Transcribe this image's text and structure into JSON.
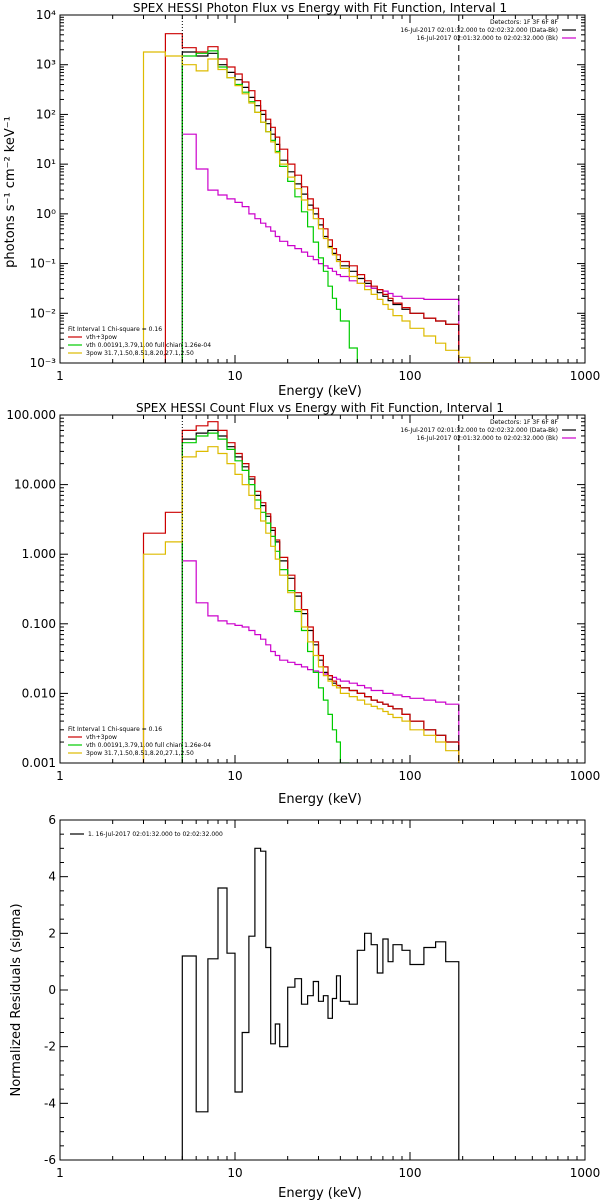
{
  "chart_data": [
    {
      "type": "line",
      "title": "SPEX HESSI Photon Flux vs Energy with Fit Function, Interval 1",
      "xlabel": "Energy (keV)",
      "ylabel": "photons s⁻¹ cm⁻² keV⁻¹",
      "xscale": "log",
      "yscale": "log",
      "xlim": [
        1,
        1000
      ],
      "ylim": [
        0.001,
        10000
      ],
      "xticks": [
        1,
        10,
        100,
        1000
      ],
      "xtick_labels": [
        "1",
        "10",
        "100",
        "1000"
      ],
      "yticks": [
        0.001,
        0.01,
        0.1,
        1,
        10,
        100,
        1000,
        10000
      ],
      "ytick_labels": [
        "10⁻³",
        "10⁻²",
        "10⁻¹",
        "10⁰",
        "10¹",
        "10²",
        "10³",
        "10⁴"
      ],
      "vlines": [
        {
          "x": 5,
          "style": "dotted"
        },
        {
          "x": 190,
          "style": "dashed"
        }
      ],
      "legend_right": {
        "header": "Detectors: 1F 3F 6F 8F",
        "entries": [
          {
            "label": "16-Jul-2017 02:01:32.000 to 02:02:32.000 (Data-Bk)",
            "color": "#000000"
          },
          {
            "label": "16-Jul-2017 02:01:32.000 to 02:02:32.000 (Bk)",
            "color": "#cc00cc"
          }
        ]
      },
      "legend_left": {
        "header": "Fit Interval 1   Chi-square = 0.16",
        "entries": [
          {
            "label": "vth+3pow",
            "color": "#cc0000"
          },
          {
            "label": "vth 0.00191,3.79,1.00  full chian 1.26e-04",
            "color": "#00cc00"
          },
          {
            "label": "3pow 31.7,1.50,8.51,8.20,27.1,2.50",
            "color": "#ddbb00"
          }
        ]
      },
      "series": [
        {
          "color": "#000000",
          "edges": [
            5,
            6,
            7,
            8,
            9,
            10,
            11,
            12,
            13,
            14,
            15,
            16,
            17,
            18,
            20,
            22,
            24,
            26,
            28,
            30,
            32,
            34,
            36,
            38,
            40,
            45,
            50,
            55,
            60,
            65,
            70,
            75,
            80,
            90,
            100,
            120,
            140,
            160,
            190
          ],
          "values": [
            1800,
            1500,
            1700,
            1000,
            700,
            500,
            350,
            220,
            150,
            100,
            65,
            40,
            25,
            12,
            7,
            4,
            2.5,
            1.5,
            1,
            0.6,
            0.35,
            0.22,
            0.16,
            0.12,
            0.09,
            0.07,
            0.05,
            0.04,
            0.032,
            0.026,
            0.022,
            0.018,
            0.015,
            0.012,
            0.01,
            0.008,
            0.007,
            0.006
          ]
        },
        {
          "color": "#cc00cc",
          "edges": [
            5,
            6,
            7,
            8,
            9,
            10,
            11,
            12,
            13,
            14,
            15,
            16,
            17,
            18,
            20,
            22,
            24,
            26,
            28,
            30,
            32,
            34,
            36,
            38,
            40,
            45,
            50,
            55,
            60,
            65,
            70,
            75,
            80,
            90,
            100,
            120,
            140,
            160,
            190
          ],
          "values": [
            40,
            8,
            3,
            2.4,
            2,
            1.7,
            1.4,
            1,
            0.8,
            0.65,
            0.55,
            0.45,
            0.35,
            0.28,
            0.23,
            0.2,
            0.17,
            0.14,
            0.12,
            0.1,
            0.09,
            0.08,
            0.07,
            0.06,
            0.055,
            0.045,
            0.04,
            0.035,
            0.032,
            0.03,
            0.028,
            0.025,
            0.022,
            0.02,
            0.02,
            0.019,
            0.019,
            0.019
          ]
        },
        {
          "color": "#cc0000",
          "edges": [
            4,
            5,
            6,
            7,
            8,
            9,
            10,
            11,
            12,
            13,
            14,
            15,
            16,
            17,
            18,
            20,
            22,
            24,
            26,
            28,
            30,
            32,
            34,
            36,
            38,
            40,
            45,
            50,
            55,
            60,
            65,
            70,
            75,
            80,
            90,
            100,
            120,
            140,
            160,
            190
          ],
          "values": [
            4200,
            2200,
            1800,
            2300,
            1300,
            900,
            650,
            450,
            300,
            190,
            120,
            80,
            55,
            35,
            20,
            10,
            6,
            3.5,
            2,
            1.3,
            0.8,
            0.5,
            0.3,
            0.2,
            0.15,
            0.11,
            0.09,
            0.06,
            0.045,
            0.035,
            0.03,
            0.024,
            0.02,
            0.016,
            0.013,
            0.01,
            0.008,
            0.007,
            0.006
          ]
        },
        {
          "color": "#00cc00",
          "edges": [
            5,
            6,
            7,
            8,
            9,
            10,
            11,
            12,
            13,
            14,
            15,
            16,
            17,
            18,
            20,
            22,
            24,
            26,
            28,
            30,
            32,
            34,
            36,
            38,
            40,
            45,
            50
          ],
          "values": [
            1500,
            1700,
            1900,
            900,
            550,
            400,
            280,
            180,
            110,
            70,
            45,
            30,
            18,
            9,
            4.5,
            2.2,
            1.1,
            0.55,
            0.27,
            0.13,
            0.07,
            0.035,
            0.02,
            0.012,
            0.007,
            0.002
          ]
        },
        {
          "color": "#ddbb00",
          "edges": [
            3,
            4,
            5,
            6,
            7,
            8,
            9,
            10,
            11,
            12,
            13,
            14,
            15,
            16,
            17,
            18,
            20,
            22,
            24,
            26,
            28,
            30,
            32,
            34,
            36,
            38,
            40,
            45,
            50,
            55,
            60,
            65,
            70,
            75,
            80,
            90,
            100,
            120,
            140,
            160,
            190,
            220,
            260,
            300
          ],
          "values": [
            1800,
            1500,
            1000,
            750,
            1300,
            800,
            550,
            380,
            260,
            170,
            110,
            70,
            45,
            28,
            17,
            10,
            5.5,
            3.2,
            1.9,
            1.2,
            0.8,
            0.5,
            0.32,
            0.21,
            0.15,
            0.11,
            0.08,
            0.055,
            0.04,
            0.03,
            0.024,
            0.019,
            0.015,
            0.012,
            0.009,
            0.007,
            0.005,
            0.0035,
            0.0025,
            0.0018,
            0.0013,
            0.001,
            0.0009
          ]
        }
      ]
    },
    {
      "type": "line",
      "title": "SPEX HESSI Count Flux vs Energy with Fit Function, Interval 1",
      "xlabel": "Energy (keV)",
      "ylabel": "",
      "xscale": "log",
      "yscale": "log",
      "xlim": [
        1,
        1000
      ],
      "ylim": [
        0.001,
        100
      ],
      "xticks": [
        1,
        10,
        100,
        1000
      ],
      "xtick_labels": [
        "1",
        "10",
        "100",
        "1000"
      ],
      "yticks": [
        0.001,
        0.01,
        0.1,
        1,
        10,
        100
      ],
      "ytick_labels": [
        "0.001",
        "0.010",
        "0.100",
        "1.000",
        "10.000",
        "100.000"
      ],
      "vlines": [
        {
          "x": 5,
          "style": "dotted"
        },
        {
          "x": 190,
          "style": "dashed"
        }
      ],
      "legend_right": {
        "header": "Detectors: 1F 3F 6F 8F",
        "entries": [
          {
            "label": "16-Jul-2017 02:01:32.000 to 02:02:32.000 (Data-Bk)",
            "color": "#000000"
          },
          {
            "label": "16-Jul-2017 02:01:32.000 to 02:02:32.000 (Bk)",
            "color": "#cc00cc"
          }
        ]
      },
      "legend_left": {
        "header": "Fit Interval 1   Chi-square = 0.16",
        "entries": [
          {
            "label": "vth+3pow",
            "color": "#cc0000"
          },
          {
            "label": "vth 0.00191,3.79,1.00  full chian 1.26e-04",
            "color": "#00cc00"
          },
          {
            "label": "3pow 31.7,1.50,8.51,8.20,27.1,2.50",
            "color": "#ddbb00"
          }
        ]
      },
      "series": [
        {
          "color": "#000000",
          "edges": [
            5,
            6,
            7,
            8,
            9,
            10,
            11,
            12,
            13,
            14,
            15,
            16,
            17,
            18,
            20,
            22,
            24,
            26,
            28,
            30,
            32,
            34,
            36,
            38,
            40,
            45,
            50,
            55,
            60,
            65,
            70,
            75,
            80,
            90,
            100,
            120,
            140,
            160,
            190
          ],
          "values": [
            45,
            55,
            60,
            50,
            35,
            25,
            18,
            12,
            7,
            5,
            3.5,
            2.2,
            1.5,
            0.8,
            0.45,
            0.25,
            0.14,
            0.08,
            0.05,
            0.03,
            0.02,
            0.016,
            0.014,
            0.013,
            0.012,
            0.011,
            0.01,
            0.009,
            0.008,
            0.0075,
            0.007,
            0.0065,
            0.006,
            0.005,
            0.004,
            0.003,
            0.0025,
            0.002
          ]
        },
        {
          "color": "#cc00cc",
          "edges": [
            5,
            6,
            7,
            8,
            9,
            10,
            11,
            12,
            13,
            14,
            15,
            16,
            17,
            18,
            20,
            22,
            24,
            26,
            28,
            30,
            32,
            34,
            36,
            38,
            40,
            45,
            50,
            55,
            60,
            65,
            70,
            75,
            80,
            90,
            100,
            120,
            140,
            160,
            190
          ],
          "values": [
            0.8,
            0.2,
            0.13,
            0.11,
            0.1,
            0.095,
            0.09,
            0.08,
            0.07,
            0.06,
            0.05,
            0.04,
            0.035,
            0.03,
            0.028,
            0.026,
            0.024,
            0.022,
            0.021,
            0.02,
            0.019,
            0.018,
            0.017,
            0.016,
            0.015,
            0.014,
            0.013,
            0.012,
            0.011,
            0.011,
            0.01,
            0.01,
            0.0095,
            0.009,
            0.0085,
            0.008,
            0.0075,
            0.007
          ]
        },
        {
          "color": "#cc0000",
          "edges": [
            3,
            4,
            5,
            6,
            7,
            8,
            9,
            10,
            11,
            12,
            13,
            14,
            15,
            16,
            17,
            18,
            20,
            22,
            24,
            26,
            28,
            30,
            32,
            34,
            36,
            38,
            40,
            45,
            50,
            55,
            60,
            65,
            70,
            75,
            80,
            90,
            100,
            120,
            140,
            160,
            190
          ],
          "values": [
            2,
            4,
            60,
            70,
            80,
            60,
            40,
            28,
            20,
            13,
            8,
            5.5,
            3.8,
            2.4,
            1.6,
            0.9,
            0.5,
            0.28,
            0.16,
            0.09,
            0.055,
            0.035,
            0.024,
            0.018,
            0.015,
            0.013,
            0.012,
            0.011,
            0.01,
            0.009,
            0.008,
            0.0075,
            0.007,
            0.0065,
            0.006,
            0.005,
            0.004,
            0.003,
            0.0025,
            0.002
          ]
        },
        {
          "color": "#00cc00",
          "edges": [
            5,
            6,
            7,
            8,
            9,
            10,
            11,
            12,
            13,
            14,
            15,
            16,
            17,
            18,
            20,
            22,
            24,
            26,
            28,
            30,
            32,
            34,
            36,
            38,
            40,
            45
          ],
          "values": [
            40,
            50,
            55,
            45,
            32,
            22,
            16,
            10,
            6,
            4,
            2.8,
            1.8,
            1.1,
            0.6,
            0.3,
            0.15,
            0.08,
            0.04,
            0.02,
            0.012,
            0.008,
            0.005,
            0.003,
            0.002,
            0.001
          ]
        },
        {
          "color": "#ddbb00",
          "edges": [
            3,
            4,
            5,
            6,
            7,
            8,
            9,
            10,
            11,
            12,
            13,
            14,
            15,
            16,
            17,
            18,
            20,
            22,
            24,
            26,
            28,
            30,
            32,
            34,
            36,
            38,
            40,
            45,
            50,
            55,
            60,
            65,
            70,
            75,
            80,
            90,
            100,
            120,
            140,
            160,
            190
          ],
          "values": [
            1,
            1.5,
            25,
            30,
            35,
            28,
            20,
            14,
            10,
            7,
            4.5,
            3,
            2,
            1.3,
            0.85,
            0.5,
            0.28,
            0.16,
            0.09,
            0.055,
            0.035,
            0.024,
            0.018,
            0.015,
            0.013,
            0.012,
            0.01,
            0.009,
            0.008,
            0.007,
            0.0065,
            0.006,
            0.0055,
            0.005,
            0.0045,
            0.004,
            0.003,
            0.0025,
            0.002,
            0.0015
          ]
        }
      ]
    },
    {
      "type": "line",
      "title": "",
      "xlabel": "Energy (keV)",
      "ylabel": "Normalized Residuals (sigma)",
      "xscale": "log",
      "yscale": "linear",
      "xlim": [
        1,
        1000
      ],
      "ylim": [
        -6,
        6
      ],
      "xticks": [
        1,
        10,
        100,
        1000
      ],
      "xtick_labels": [
        "1",
        "10",
        "100",
        "1000"
      ],
      "yticks": [
        -6,
        -4,
        -2,
        0,
        2,
        4,
        6
      ],
      "ytick_labels": [
        "-6",
        "-4",
        "-2",
        "0",
        "2",
        "4",
        "6"
      ],
      "legend": {
        "label": "1. 16-Jul-2017 02:01:32.000 to 02:02:32.000",
        "color": "#000000"
      },
      "series": [
        {
          "color": "#000000",
          "edges": [
            5,
            6,
            7,
            8,
            9,
            10,
            11,
            12,
            13,
            14,
            15,
            16,
            17,
            18,
            20,
            22,
            24,
            26,
            28,
            30,
            32,
            34,
            36,
            38,
            40,
            45,
            50,
            55,
            60,
            65,
            70,
            75,
            80,
            90,
            100,
            120,
            140,
            160,
            190
          ],
          "values": [
            1.2,
            -4.3,
            1.1,
            3.6,
            1.3,
            -3.6,
            -1.5,
            1.9,
            5.0,
            4.9,
            1.5,
            -1.9,
            -1.2,
            -2.0,
            0.1,
            0.4,
            -0.5,
            -0.2,
            0.3,
            -0.4,
            -0.2,
            -1.0,
            -0.3,
            0.5,
            -0.4,
            -0.5,
            1.4,
            2.0,
            1.6,
            0.6,
            1.8,
            1.0,
            1.6,
            1.4,
            0.9,
            1.5,
            1.7,
            1.0
          ]
        }
      ]
    }
  ]
}
